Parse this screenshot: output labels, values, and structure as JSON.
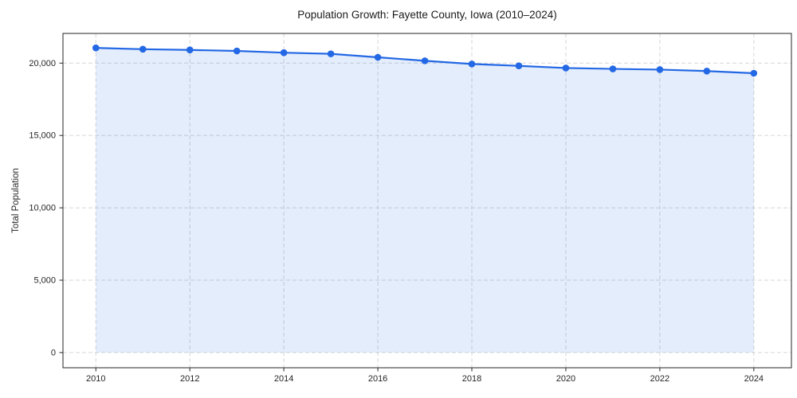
{
  "chart_data": {
    "type": "line",
    "title": "Population Growth: Fayette County, Iowa (2010–2024)",
    "xlabel": "",
    "ylabel": "Total Population",
    "x": [
      2010,
      2011,
      2012,
      2013,
      2014,
      2015,
      2016,
      2017,
      2018,
      2019,
      2020,
      2021,
      2022,
      2023,
      2024
    ],
    "series": [
      {
        "name": "Total Population",
        "values": [
          21050,
          20960,
          20910,
          20840,
          20720,
          20640,
          20400,
          20160,
          19940,
          19810,
          19660,
          19600,
          19550,
          19450,
          19300
        ]
      }
    ],
    "xticks": [
      2010,
      2012,
      2014,
      2016,
      2018,
      2020,
      2022,
      2024
    ],
    "yticks": [
      0,
      5000,
      10000,
      15000,
      20000
    ],
    "xlim": [
      2009.3,
      2024.8
    ],
    "ylim": [
      -1050,
      22050
    ],
    "grid": true,
    "grid_style": "dashed",
    "legend": false,
    "marker": "circle",
    "area_fill": true
  },
  "colors": {
    "line": "#2368e4",
    "marker": "#2368e4",
    "area_fill": "#2368e4",
    "area_fill_opacity": "0.12",
    "grid": "#d6d6d6",
    "spine": "#262626",
    "tick": "#262626",
    "tick_text": "#262626",
    "title_text": "#1a1a1a",
    "background": "#ffffff"
  }
}
